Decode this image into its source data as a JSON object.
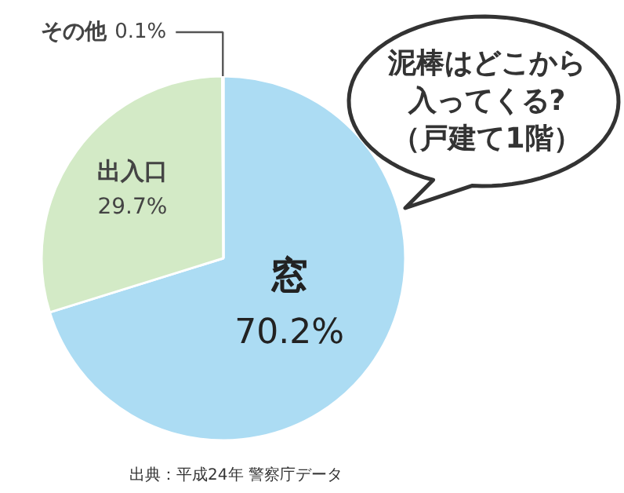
{
  "chart_data": {
    "type": "pie",
    "title": "泥棒はどこから入ってくる?（戸建て1階）",
    "categories": [
      "窓",
      "出入口",
      "その他"
    ],
    "values": [
      70.2,
      29.7,
      0.1
    ],
    "colors": [
      "#acdcf3",
      "#d3eac6",
      "#dcedd2"
    ],
    "value_labels": [
      "70.2%",
      "29.7%",
      "0.1%"
    ],
    "annotations": [
      "出典：平成24年 警察庁データ"
    ]
  }
}
